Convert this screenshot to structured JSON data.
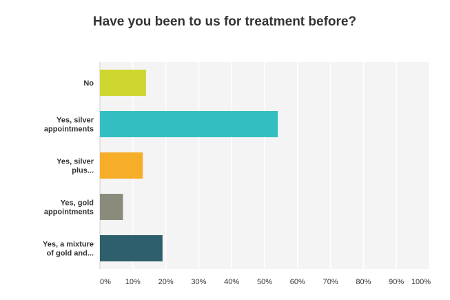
{
  "chart_data": {
    "type": "bar",
    "orientation": "horizontal",
    "title": "Have you been to us for treatment before?",
    "categories": [
      [
        "No"
      ],
      [
        "Yes, silver",
        "appointments"
      ],
      [
        "Yes, silver",
        "plus..."
      ],
      [
        "Yes, gold",
        "appointments"
      ],
      [
        "Yes, a mixture",
        "of gold and..."
      ]
    ],
    "values": [
      14,
      54,
      13,
      7,
      19
    ],
    "colors": [
      "#cfd62e",
      "#33bfc1",
      "#f6ae28",
      "#8b8b7b",
      "#2e5f6c"
    ],
    "xlim": [
      0,
      100
    ],
    "ticks": [
      "0%",
      "10%",
      "20%",
      "30%",
      "40%",
      "50%",
      "60%",
      "70%",
      "80%",
      "90%",
      "100%"
    ],
    "grid": true
  }
}
